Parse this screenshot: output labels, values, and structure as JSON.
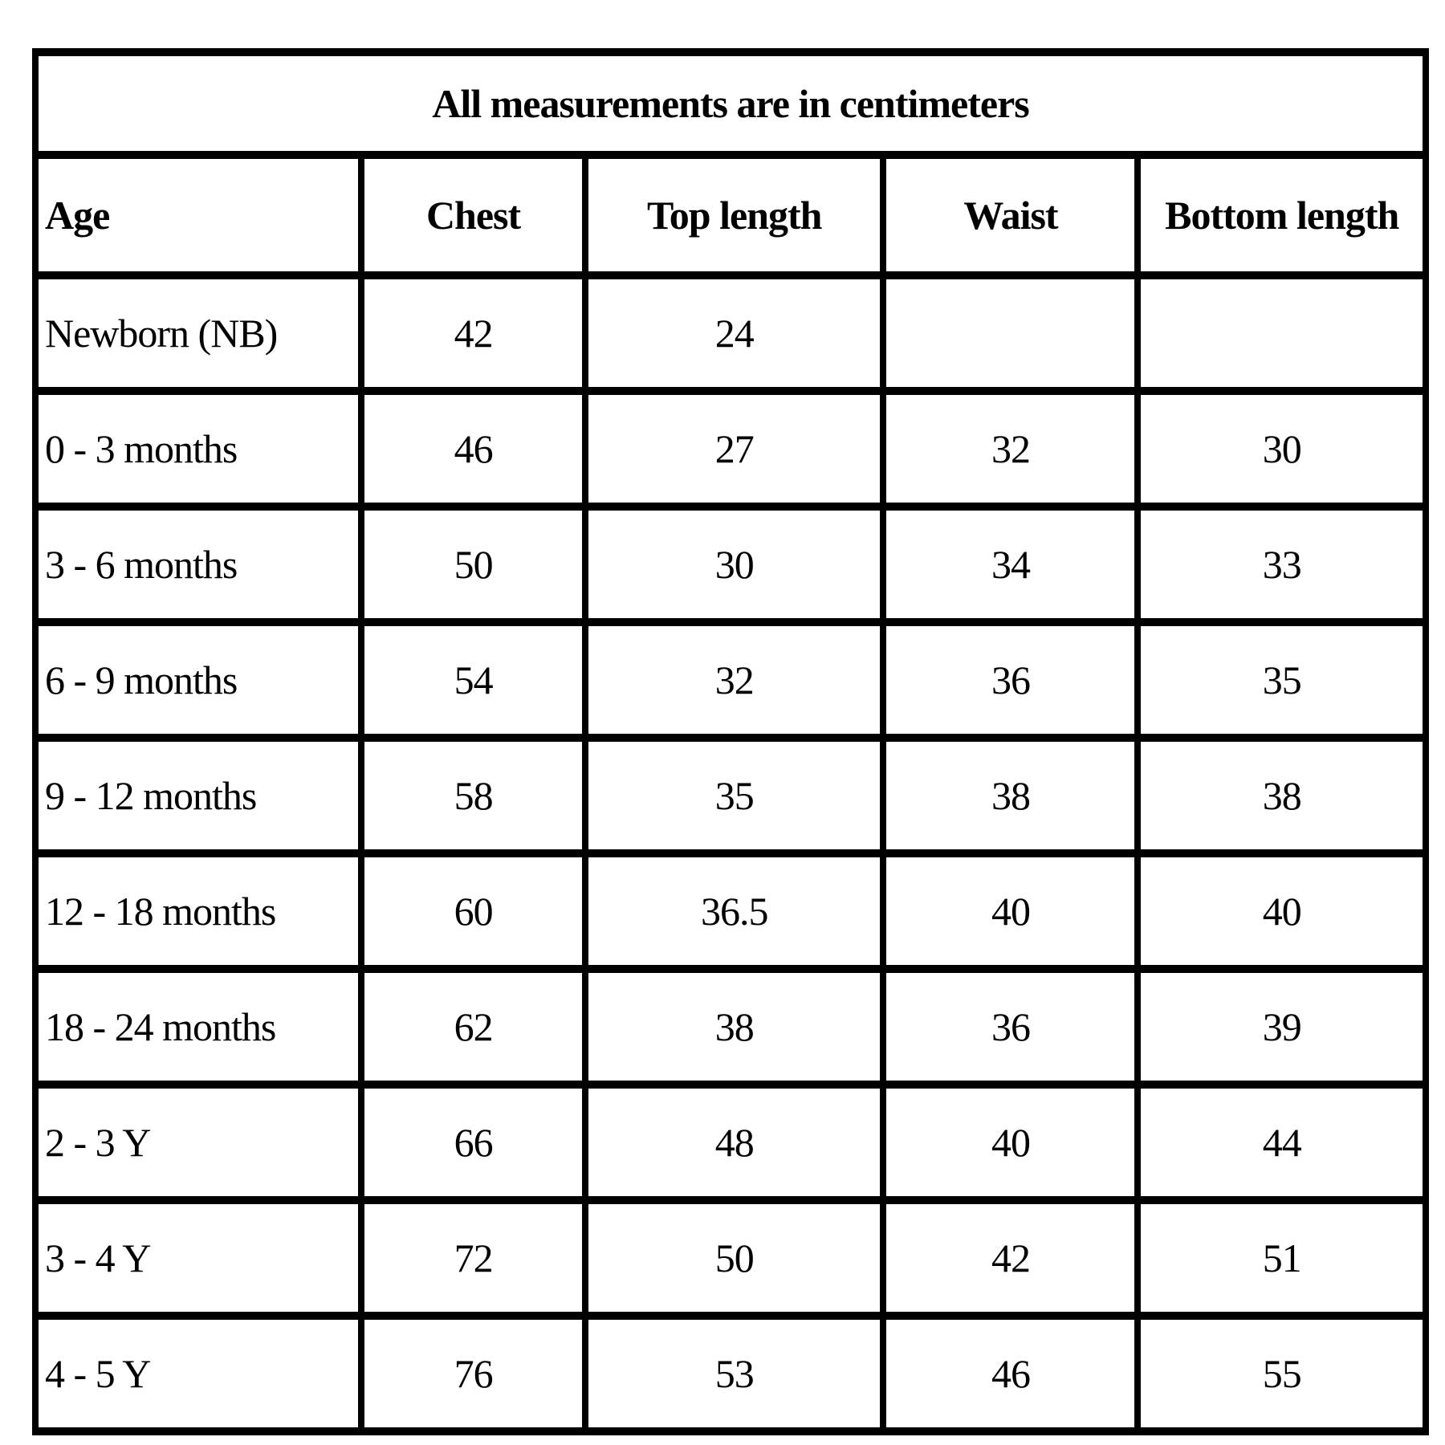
{
  "colors": {
    "background": "#ffffff",
    "line_color": "#000000",
    "text_color": "#000000"
  },
  "table": {
    "title": "All measurements are in centimeters",
    "columns": [
      "Age",
      "Chest",
      "Top length",
      "Waist",
      "Bottom length"
    ],
    "rows": [
      {
        "age": "Newborn (NB)",
        "chest": "42",
        "top_length": "24",
        "waist": "",
        "bottom_length": ""
      },
      {
        "age": "0 - 3 months",
        "chest": "46",
        "top_length": "27",
        "waist": "32",
        "bottom_length": "30"
      },
      {
        "age": "3 - 6 months",
        "chest": "50",
        "top_length": "30",
        "waist": "34",
        "bottom_length": "33"
      },
      {
        "age": "6 - 9 months",
        "chest": "54",
        "top_length": "32",
        "waist": "36",
        "bottom_length": "35"
      },
      {
        "age": "9 - 12 months",
        "chest": "58",
        "top_length": "35",
        "waist": "38",
        "bottom_length": "38"
      },
      {
        "age": "12 - 18 months",
        "chest": "60",
        "top_length": "36.5",
        "waist": "40",
        "bottom_length": "40"
      },
      {
        "age": "18 - 24 months",
        "chest": "62",
        "top_length": "38",
        "waist": "36",
        "bottom_length": "39"
      },
      {
        "age": "2 - 3 Y",
        "chest": "66",
        "top_length": "48",
        "waist": "40",
        "bottom_length": "44"
      },
      {
        "age": "3 - 4 Y",
        "chest": "72",
        "top_length": "50",
        "waist": "42",
        "bottom_length": "51"
      },
      {
        "age": "4 - 5 Y",
        "chest": "76",
        "top_length": "53",
        "waist": "46",
        "bottom_length": "55"
      }
    ]
  },
  "chart_data": {
    "type": "table",
    "title": "All measurements are in centimeters",
    "columns": [
      "Age",
      "Chest",
      "Top length",
      "Waist",
      "Bottom length"
    ],
    "rows": [
      [
        "Newborn (NB)",
        42,
        24,
        null,
        null
      ],
      [
        "0 - 3 months",
        46,
        27,
        32,
        30
      ],
      [
        "3 - 6 months",
        50,
        30,
        34,
        33
      ],
      [
        "6 - 9 months",
        54,
        32,
        36,
        35
      ],
      [
        "9 - 12 months",
        58,
        35,
        38,
        38
      ],
      [
        "12 - 18 months",
        60,
        36.5,
        40,
        40
      ],
      [
        "18 - 24 months",
        62,
        38,
        36,
        39
      ],
      [
        "2 - 3 Y",
        66,
        48,
        40,
        44
      ],
      [
        "3 - 4 Y",
        72,
        50,
        42,
        51
      ],
      [
        "4 - 5 Y",
        76,
        53,
        46,
        55
      ]
    ],
    "units": "centimeters"
  }
}
